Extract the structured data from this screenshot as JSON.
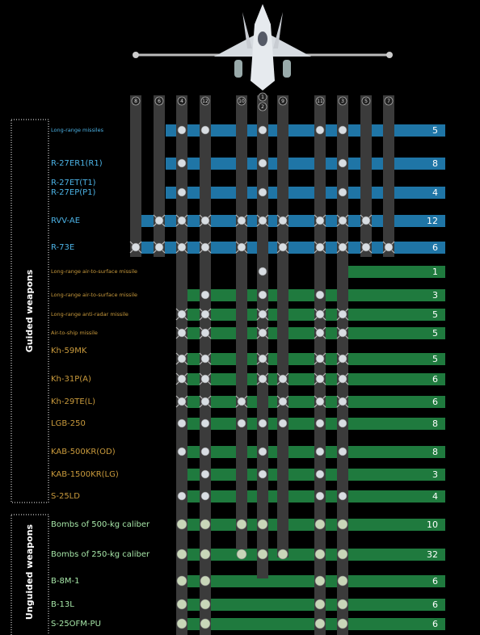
{
  "pylons": [
    "8",
    "6",
    "4",
    "12",
    "10",
    "1",
    "2",
    "9",
    "11",
    "3",
    "5",
    "7"
  ],
  "groups": [
    "Guided weapons",
    "Unguided weapons"
  ],
  "rows": [
    {
      "lines": [
        "Long-range missiles"
      ],
      "count": 5
    },
    {
      "lines": [
        "R-27ER1(R1)"
      ],
      "count": 8
    },
    {
      "lines": [
        "R-27ET(T1)",
        "R-27EP(P1)"
      ],
      "count": 4
    },
    {
      "lines": [
        "RVV-AE"
      ],
      "count": 12
    },
    {
      "lines": [
        "R-73E"
      ],
      "count": 6
    },
    {
      "lines": [
        "Long-range air-to-surface missile"
      ],
      "count": 1
    },
    {
      "lines": [
        "Long-range air-to-surface missile"
      ],
      "count": 3
    },
    {
      "lines": [
        "Long-range anti-radar missile"
      ],
      "count": 5
    },
    {
      "lines": [
        "Air-to-ship missile"
      ],
      "count": 5
    },
    {
      "lines": [
        "Kh-59MK"
      ],
      "count": 5
    },
    {
      "lines": [
        "Kh-31P(A)"
      ],
      "count": 6
    },
    {
      "lines": [
        "Kh-29TE(L)"
      ],
      "count": 6
    },
    {
      "lines": [
        "LGB-250"
      ],
      "count": 8
    },
    {
      "lines": [
        "KAB-500KR(OD)"
      ],
      "count": 8
    },
    {
      "lines": [
        "KAB-1500KR(LG)"
      ],
      "count": 3
    },
    {
      "lines": [
        "S-25LD"
      ],
      "count": 4
    },
    {
      "lines": [
        "Bombs of 500-kg caliber"
      ],
      "count": 10
    },
    {
      "lines": [
        "Bombs of 250-kg caliber"
      ],
      "count": 32
    },
    {
      "lines": [
        "B-8M-1"
      ],
      "count": 6
    },
    {
      "lines": [
        "B-13L"
      ],
      "count": 6
    },
    {
      "lines": [
        "S-25OFM-PU"
      ],
      "count": 6
    }
  ]
}
